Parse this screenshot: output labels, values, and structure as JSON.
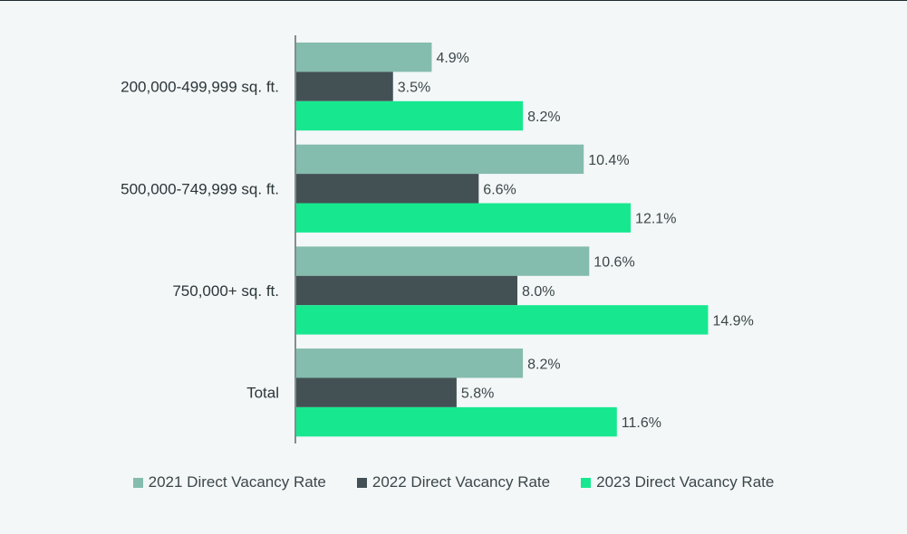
{
  "colors": {
    "series_2021": "#84bcad",
    "series_2022": "#435155",
    "series_2023": "#17e88f",
    "axis": "#3a4548"
  },
  "chart_data": {
    "type": "bar",
    "orientation": "horizontal",
    "categories": [
      "200,000-499,999 sq. ft.",
      "500,000-749,999 sq. ft.",
      "750,000+ sq. ft.",
      "Total"
    ],
    "series": [
      {
        "name": "2021 Direct Vacancy Rate",
        "values": [
          4.9,
          10.4,
          10.6,
          8.2
        ],
        "labels": [
          "4.9%",
          "10.4%",
          "10.6%",
          "8.2%"
        ]
      },
      {
        "name": "2022 Direct Vacancy Rate",
        "values": [
          3.5,
          6.6,
          8.0,
          5.8
        ],
        "labels": [
          "3.5%",
          "6.6%",
          "8.0%",
          "5.8%"
        ]
      },
      {
        "name": "2023 Direct Vacancy Rate",
        "values": [
          8.2,
          12.1,
          14.9,
          11.6
        ],
        "labels": [
          "8.2%",
          "12.1%",
          "14.9%",
          "11.6%"
        ]
      }
    ],
    "xlim": [
      0,
      16
    ],
    "grid": false,
    "legend_position": "bottom"
  }
}
